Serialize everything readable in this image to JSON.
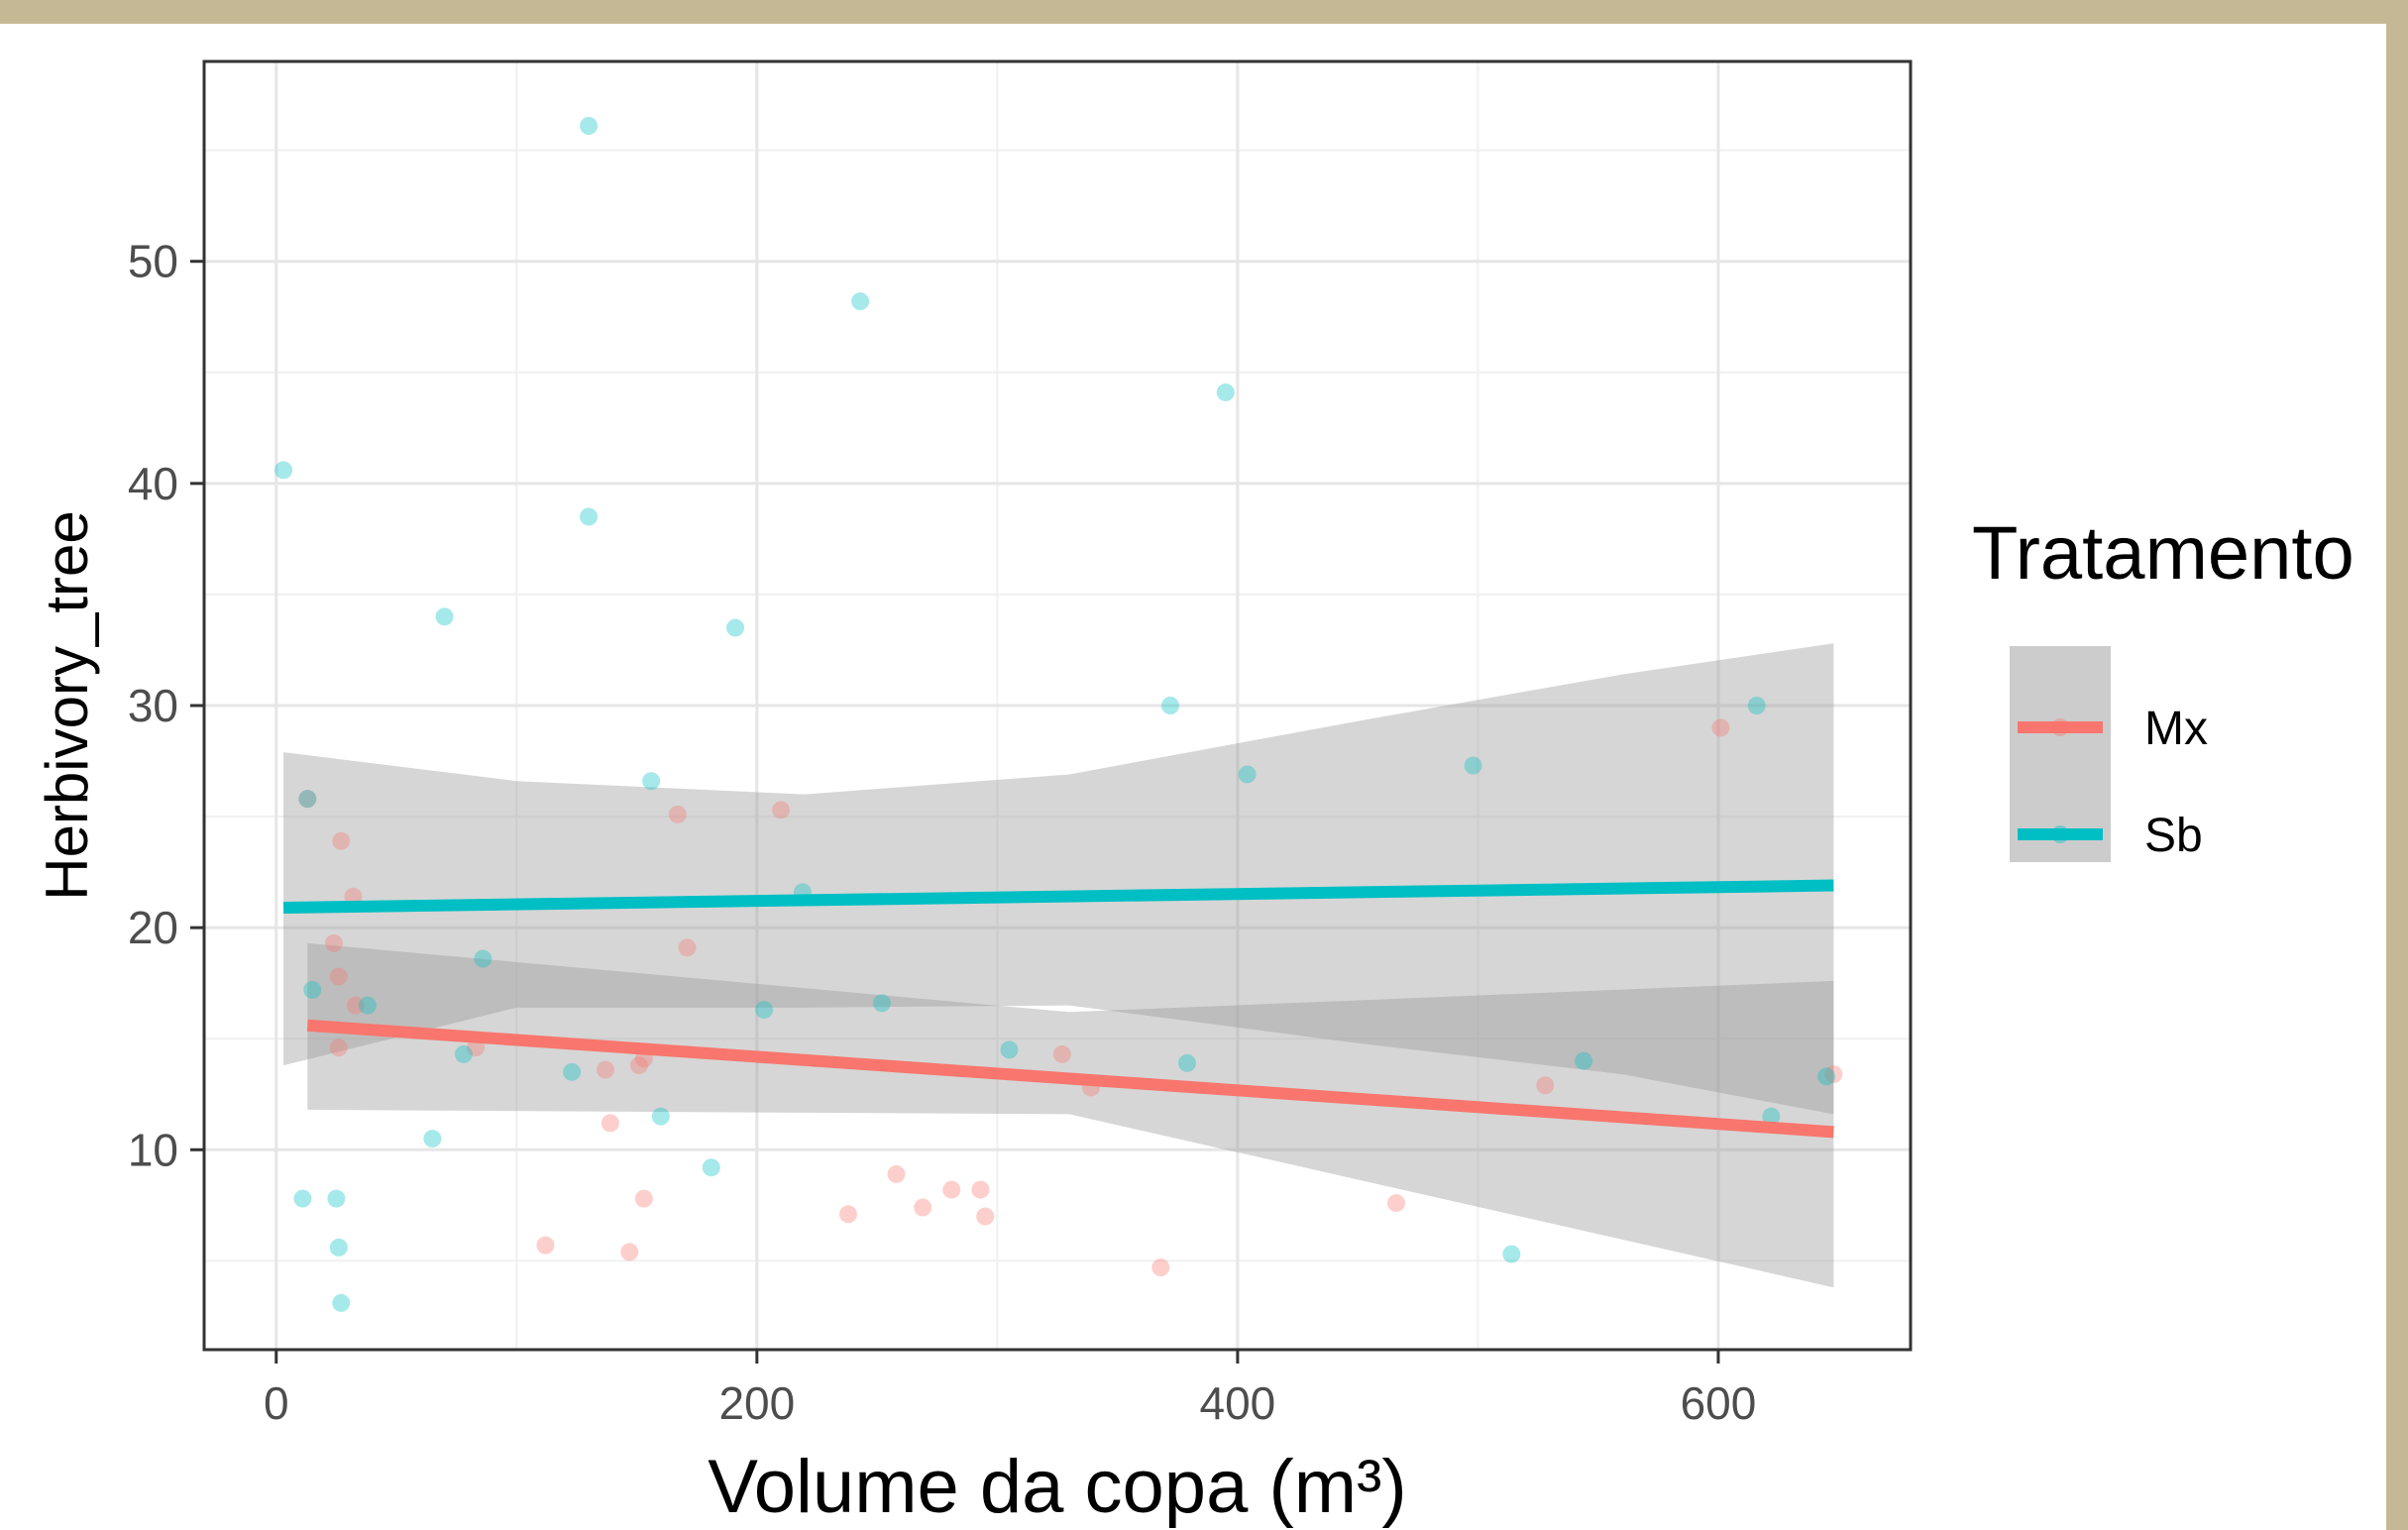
{
  "chart_data": {
    "type": "scatter",
    "title": "",
    "xlabel": "Volume da copa (m³)",
    "ylabel": "Herbivory_tree",
    "xlim": [
      -30,
      680
    ],
    "ylim": [
      1,
      59
    ],
    "xticks": [
      0,
      200,
      400,
      600
    ],
    "yticks": [
      10,
      20,
      30,
      40,
      50
    ],
    "grid": true,
    "legend": {
      "title": "Tratamento",
      "position": "right"
    },
    "series": [
      {
        "name": "Mx",
        "color": "#f8766d",
        "points": [
          [
            13,
            25.8
          ],
          [
            24,
            19.3
          ],
          [
            26,
            17.8
          ],
          [
            26,
            14.6
          ],
          [
            27,
            23.9
          ],
          [
            32,
            21.4
          ],
          [
            33,
            16.5
          ],
          [
            83,
            14.6
          ],
          [
            112,
            5.7
          ],
          [
            137,
            13.6
          ],
          [
            139,
            11.2
          ],
          [
            147,
            5.4
          ],
          [
            151,
            13.8
          ],
          [
            153,
            14.1
          ],
          [
            153,
            7.8
          ],
          [
            167,
            25.1
          ],
          [
            171,
            19.1
          ],
          [
            210,
            25.3
          ],
          [
            238,
            7.1
          ],
          [
            258,
            8.9
          ],
          [
            269,
            7.4
          ],
          [
            281,
            8.2
          ],
          [
            293,
            8.2
          ],
          [
            295,
            7.0
          ],
          [
            327,
            14.3
          ],
          [
            339,
            12.8
          ],
          [
            368,
            4.7
          ],
          [
            466,
            7.6
          ],
          [
            528,
            12.9
          ],
          [
            601,
            29.0
          ],
          [
            648,
            13.4
          ]
        ],
        "trend": {
          "x": [
            13,
            648
          ],
          "y": [
            15.6,
            10.8
          ]
        },
        "ci": {
          "x": [
            13,
            330,
            648
          ],
          "lower": [
            11.8,
            11.6,
            3.8
          ],
          "upper": [
            19.3,
            16.2,
            17.6
          ]
        }
      },
      {
        "name": "Sb",
        "color": "#00bfc4",
        "points": [
          [
            3,
            40.6
          ],
          [
            11,
            7.8
          ],
          [
            13,
            25.8
          ],
          [
            15,
            17.2
          ],
          [
            25,
            7.8
          ],
          [
            26,
            5.6
          ],
          [
            27,
            3.1
          ],
          [
            38,
            16.5
          ],
          [
            65,
            10.5
          ],
          [
            70,
            34.0
          ],
          [
            78,
            14.3
          ],
          [
            86,
            18.6
          ],
          [
            123,
            13.5
          ],
          [
            130,
            56.1
          ],
          [
            130,
            38.5
          ],
          [
            156,
            26.6
          ],
          [
            160,
            11.5
          ],
          [
            181,
            9.2
          ],
          [
            191,
            33.5
          ],
          [
            203,
            16.3
          ],
          [
            219,
            21.6
          ],
          [
            243,
            48.2
          ],
          [
            252,
            16.6
          ],
          [
            305,
            14.5
          ],
          [
            372,
            30.0
          ],
          [
            379,
            13.9
          ],
          [
            395,
            44.1
          ],
          [
            404,
            26.9
          ],
          [
            498,
            27.3
          ],
          [
            514,
            5.3
          ],
          [
            544,
            14.0
          ],
          [
            616,
            30.0
          ],
          [
            622,
            11.5
          ],
          [
            645,
            13.3
          ]
        ],
        "trend": {
          "x": [
            3,
            648
          ],
          "y": [
            20.9,
            21.9
          ]
        },
        "ci": {
          "x": [
            3,
            100,
            220,
            330,
            450,
            560,
            648
          ],
          "lower": [
            13.8,
            16.4,
            16.4,
            16.5,
            14.8,
            13.4,
            11.6
          ],
          "upper": [
            27.9,
            26.6,
            26.0,
            26.9,
            29.3,
            31.4,
            32.8
          ]
        }
      }
    ]
  }
}
